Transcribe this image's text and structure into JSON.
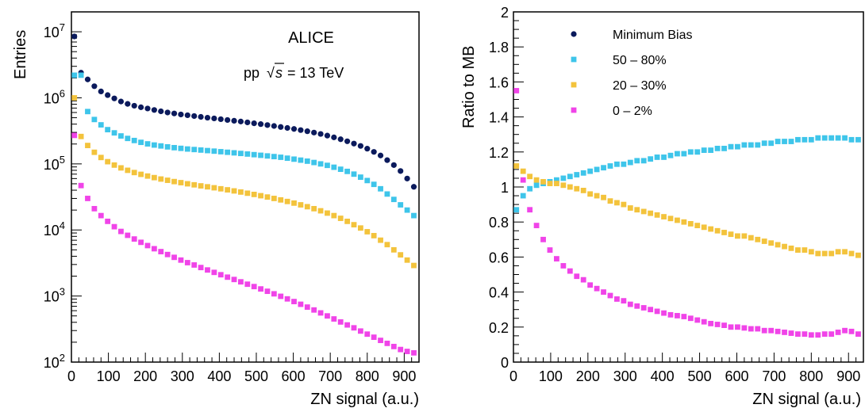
{
  "chart_data": [
    {
      "type": "scatter",
      "xlabel": "ZN signal (a.u.)",
      "ylabel": "Entries",
      "yscale": "log",
      "xlim": [
        0,
        940
      ],
      "ylim": [
        100,
        20000000
      ],
      "xticks": [
        0,
        100,
        200,
        300,
        400,
        500,
        600,
        700,
        800,
        900
      ],
      "yticks": [
        {
          "value": 100,
          "base": "10",
          "exp": "2"
        },
        {
          "value": 1000,
          "base": "10",
          "exp": "3"
        },
        {
          "value": 10000,
          "base": "10",
          "exp": "4"
        },
        {
          "value": 100000,
          "base": "10",
          "exp": "5"
        },
        {
          "value": 1000000,
          "base": "10",
          "exp": "6"
        },
        {
          "value": 10000000,
          "base": "10",
          "exp": "7"
        }
      ],
      "annotations": {
        "experiment": "ALICE",
        "system_prefix": "pp",
        "sqrt_symbol": "√",
        "s_var": "s",
        "energy": "= 13 TeV"
      },
      "x": [
        8,
        26,
        44,
        62,
        80,
        98,
        116,
        134,
        152,
        170,
        188,
        206,
        224,
        242,
        260,
        278,
        296,
        314,
        332,
        350,
        368,
        386,
        404,
        422,
        440,
        458,
        476,
        494,
        512,
        530,
        548,
        566,
        584,
        602,
        620,
        638,
        656,
        674,
        692,
        710,
        728,
        746,
        764,
        782,
        800,
        818,
        836,
        854,
        872,
        890,
        908,
        926
      ],
      "series": [
        {
          "name": "Minimum Bias",
          "color": "#0b1a5c",
          "marker": "circle",
          "values": [
            8500000,
            2400000,
            1900000,
            1500000,
            1250000,
            1100000,
            980000,
            880000,
            810000,
            760000,
            720000,
            690000,
            655000,
            625000,
            600000,
            580000,
            560000,
            545000,
            530000,
            515000,
            500000,
            488000,
            475000,
            462000,
            450000,
            438000,
            425000,
            412000,
            400000,
            387000,
            375000,
            362000,
            350000,
            338000,
            325000,
            312000,
            298000,
            284000,
            268000,
            252000,
            236000,
            220000,
            203000,
            187000,
            170000,
            152000,
            134000,
            114000,
            96000,
            78000,
            60000,
            45000
          ]
        },
        {
          "name": "50 – 80%",
          "color": "#3ec5ea",
          "marker": "square",
          "values": [
            2200000,
            2200000,
            620000,
            470000,
            390000,
            330000,
            295000,
            265000,
            243000,
            226000,
            212000,
            201000,
            193000,
            187000,
            181000,
            176000,
            172000,
            168000,
            165000,
            162000,
            159000,
            156000,
            153000,
            150000,
            147000,
            144000,
            141000,
            138000,
            135000,
            132000,
            129000,
            126000,
            122000,
            118000,
            114000,
            110000,
            105000,
            100000,
            95000,
            89000,
            83000,
            77000,
            70000,
            63000,
            56000,
            49000,
            42000,
            35000,
            29000,
            24000,
            20000,
            16500
          ]
        },
        {
          "name": "20 – 30%",
          "color": "#f3c33c",
          "marker": "square",
          "values": [
            1000000,
            260000,
            190000,
            150000,
            125000,
            108000,
            96000,
            87000,
            80000,
            74000,
            69500,
            65500,
            62000,
            59000,
            56500,
            54000,
            52000,
            50000,
            48200,
            46500,
            45000,
            43500,
            42000,
            40500,
            39000,
            37500,
            36000,
            34500,
            33000,
            31500,
            30000,
            28500,
            27000,
            25500,
            24000,
            22500,
            21000,
            19500,
            18000,
            16500,
            15000,
            13500,
            12000,
            10700,
            9400,
            8200,
            7000,
            6000,
            5000,
            4200,
            3500,
            2900
          ]
        },
        {
          "name": "0 – 2%",
          "color": "#f044e8",
          "marker": "square",
          "values": [
            270000,
            47000,
            30000,
            21000,
            16500,
            13500,
            11200,
            9500,
            8300,
            7300,
            6500,
            5800,
            5200,
            4700,
            4250,
            3850,
            3500,
            3200,
            2950,
            2700,
            2480,
            2280,
            2100,
            1930,
            1780,
            1640,
            1510,
            1390,
            1280,
            1180,
            1080,
            990,
            905,
            825,
            750,
            680,
            615,
            555,
            500,
            450,
            405,
            365,
            330,
            295,
            265,
            238,
            213,
            192,
            172,
            155,
            145,
            138
          ]
        }
      ]
    },
    {
      "type": "scatter",
      "xlabel": "ZN signal (a.u.)",
      "ylabel": "Ratio to MB",
      "yscale": "linear",
      "xlim": [
        0,
        940
      ],
      "ylim": [
        0,
        2
      ],
      "xticks": [
        0,
        100,
        200,
        300,
        400,
        500,
        600,
        700,
        800,
        900
      ],
      "yticks": [
        {
          "value": 0,
          "label": "0"
        },
        {
          "value": 0.2,
          "label": "0.2"
        },
        {
          "value": 0.4,
          "label": "0.4"
        },
        {
          "value": 0.6,
          "label": "0.6"
        },
        {
          "value": 0.8,
          "label": "0.8"
        },
        {
          "value": 1,
          "label": "1"
        },
        {
          "value": 1.2,
          "label": "1.2"
        },
        {
          "value": 1.4,
          "label": "1.4"
        },
        {
          "value": 1.6,
          "label": "1.6"
        },
        {
          "value": 1.8,
          "label": "1.8"
        },
        {
          "value": 2,
          "label": "2"
        }
      ],
      "legend_position": "top",
      "legend": [
        {
          "label": "Minimum Bias",
          "color": "#0b1a5c",
          "marker": "circle"
        },
        {
          "label": "50 – 80%",
          "color": "#3ec5ea",
          "marker": "square"
        },
        {
          "label": "20 – 30%",
          "color": "#f3c33c",
          "marker": "square"
        },
        {
          "label": "0 – 2%",
          "color": "#f044e8",
          "marker": "square"
        }
      ],
      "x": [
        8,
        26,
        44,
        62,
        80,
        98,
        116,
        134,
        152,
        170,
        188,
        206,
        224,
        242,
        260,
        278,
        296,
        314,
        332,
        350,
        368,
        386,
        404,
        422,
        440,
        458,
        476,
        494,
        512,
        530,
        548,
        566,
        584,
        602,
        620,
        638,
        656,
        674,
        692,
        710,
        728,
        746,
        764,
        782,
        800,
        818,
        836,
        854,
        872,
        890,
        908,
        926
      ],
      "series": [
        {
          "name": "50 – 80%",
          "color": "#3ec5ea",
          "marker": "square",
          "values": [
            0.87,
            0.95,
            0.99,
            1.01,
            1.02,
            1.03,
            1.04,
            1.05,
            1.06,
            1.07,
            1.08,
            1.09,
            1.1,
            1.11,
            1.12,
            1.13,
            1.13,
            1.14,
            1.15,
            1.15,
            1.16,
            1.17,
            1.17,
            1.18,
            1.19,
            1.19,
            1.2,
            1.2,
            1.21,
            1.21,
            1.22,
            1.22,
            1.23,
            1.23,
            1.24,
            1.24,
            1.24,
            1.25,
            1.25,
            1.26,
            1.26,
            1.26,
            1.27,
            1.27,
            1.27,
            1.28,
            1.28,
            1.28,
            1.28,
            1.28,
            1.27,
            1.27
          ]
        },
        {
          "name": "20 – 30%",
          "color": "#f3c33c",
          "marker": "square",
          "values": [
            1.12,
            1.09,
            1.06,
            1.04,
            1.03,
            1.02,
            1.02,
            1.01,
            1.0,
            0.99,
            0.98,
            0.96,
            0.95,
            0.94,
            0.92,
            0.91,
            0.9,
            0.88,
            0.87,
            0.86,
            0.85,
            0.84,
            0.83,
            0.82,
            0.81,
            0.8,
            0.79,
            0.78,
            0.77,
            0.76,
            0.75,
            0.74,
            0.73,
            0.72,
            0.72,
            0.71,
            0.7,
            0.69,
            0.68,
            0.67,
            0.66,
            0.65,
            0.64,
            0.64,
            0.63,
            0.62,
            0.62,
            0.62,
            0.63,
            0.63,
            0.62,
            0.61
          ]
        },
        {
          "name": "0 – 2%",
          "color": "#f044e8",
          "marker": "square",
          "values": [
            1.55,
            1.04,
            0.87,
            0.78,
            0.7,
            0.64,
            0.59,
            0.55,
            0.52,
            0.49,
            0.47,
            0.44,
            0.42,
            0.4,
            0.38,
            0.36,
            0.35,
            0.33,
            0.32,
            0.31,
            0.3,
            0.29,
            0.28,
            0.27,
            0.265,
            0.26,
            0.25,
            0.24,
            0.23,
            0.22,
            0.215,
            0.21,
            0.2,
            0.2,
            0.195,
            0.19,
            0.19,
            0.18,
            0.18,
            0.175,
            0.17,
            0.165,
            0.16,
            0.16,
            0.155,
            0.155,
            0.16,
            0.16,
            0.17,
            0.18,
            0.175,
            0.16
          ]
        }
      ]
    }
  ]
}
